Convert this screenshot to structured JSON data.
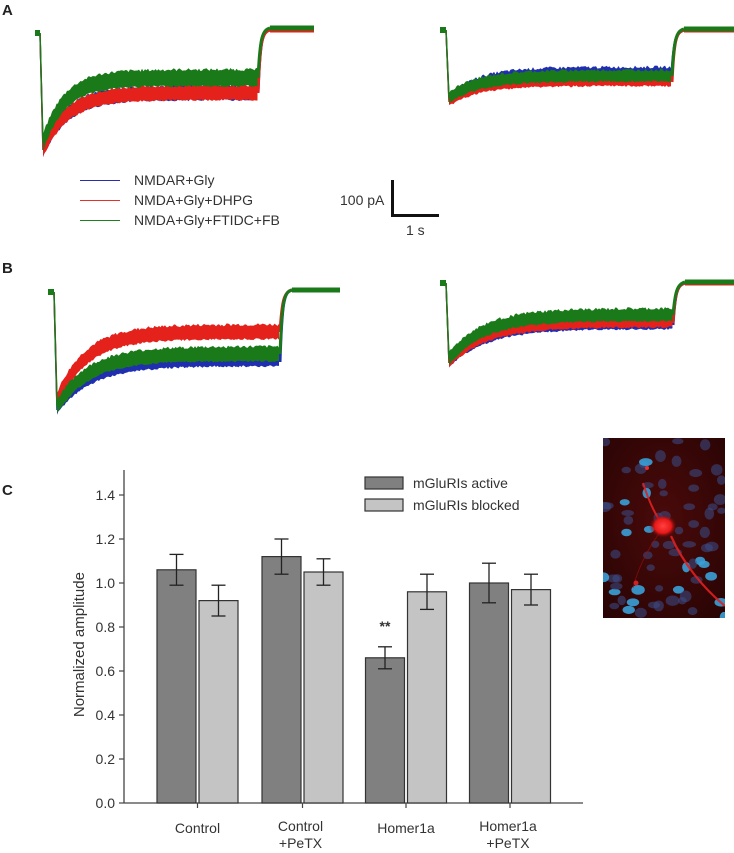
{
  "panels": {
    "A": {
      "label": "A"
    },
    "B": {
      "label": "B"
    },
    "C": {
      "label": "C"
    }
  },
  "legend_traces": {
    "items": [
      {
        "label": "NMDAR+Gly",
        "color": "#2b2bb3"
      },
      {
        "label": "NMDA+Gly+DHPG",
        "color": "#e8302a"
      },
      {
        "label": "NMDA+Gly+FTIDC+FB",
        "color": "#1e7f1e"
      }
    ]
  },
  "scale_bar": {
    "vertical_label": "100 pA",
    "horizontal_label": "1 s"
  },
  "traces": {
    "colors": {
      "blue": "#1f2fb0",
      "red": "#e4211b",
      "green": "#1a7a1a"
    }
  },
  "chart_data": {
    "type": "bar",
    "title": "",
    "xlabel": "",
    "ylabel": "Normalized amplitude",
    "ylim": [
      0.0,
      1.5
    ],
    "yticks": [
      0.0,
      0.2,
      0.4,
      0.6,
      0.8,
      1.0,
      1.2,
      1.4
    ],
    "ytick_labels": [
      "0.0",
      "0.2",
      "0.4",
      "0.6",
      "0.8",
      "1.0",
      "1.2",
      "1.4"
    ],
    "categories": [
      "Control",
      "Control\n+PeTX",
      "Homer1a",
      "Homer1a\n+PeTX"
    ],
    "category_lines": [
      [
        "Control"
      ],
      [
        "Control",
        "+PeTX"
      ],
      [
        "Homer1a"
      ],
      [
        "Homer1a",
        "+PeTX"
      ]
    ],
    "series": [
      {
        "name": "mGluRIs active",
        "color": "#808080",
        "values": [
          1.06,
          1.12,
          0.66,
          1.0
        ],
        "errors": [
          0.07,
          0.08,
          0.05,
          0.09
        ]
      },
      {
        "name": "mGluRIs blocked",
        "color": "#c4c4c4",
        "values": [
          0.92,
          1.05,
          0.96,
          0.97
        ],
        "errors": [
          0.07,
          0.06,
          0.08,
          0.07
        ]
      }
    ],
    "annotations": [
      {
        "text": "**",
        "category": "Homer1a",
        "series": "mGluRIs active"
      }
    ],
    "grid": false,
    "legend_position": "top-right"
  },
  "micrograph": {
    "description": "fluorescence image of neuron (red) with nuclei (blue)"
  }
}
